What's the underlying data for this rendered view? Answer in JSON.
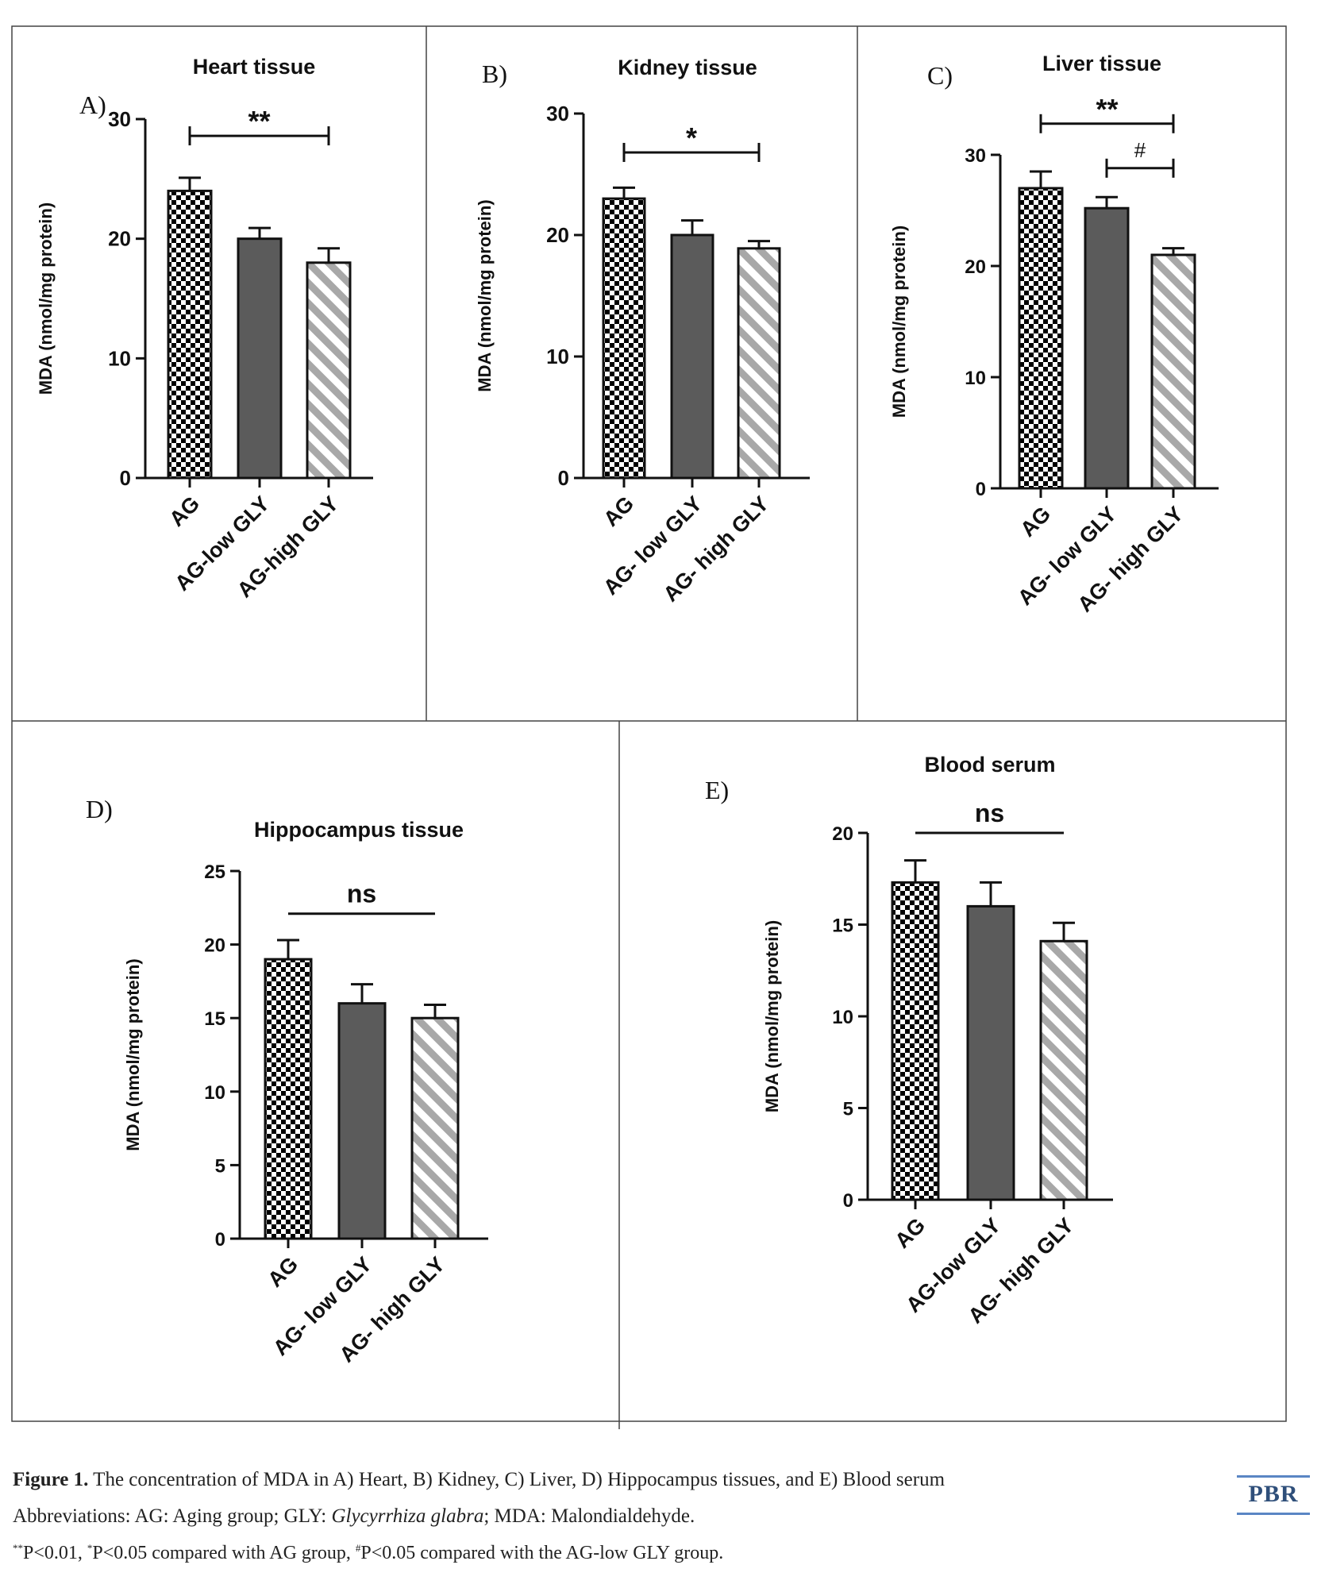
{
  "chart_data": [
    {
      "type": "bar",
      "panel_label": "A)",
      "title": "Heart tissue",
      "ylabel": "MDA (nmol/mg protein)",
      "categories": [
        "AG",
        "AG-low GLY",
        "AG-high GLY"
      ],
      "values": [
        24,
        20,
        18
      ],
      "errors": [
        1.1,
        0.9,
        1.2
      ],
      "ylim": [
        0,
        30
      ],
      "yticks": [
        0,
        10,
        20,
        30
      ],
      "significance": [
        {
          "from": 0,
          "to": 2,
          "label": "**",
          "level": 28.6
        }
      ]
    },
    {
      "type": "bar",
      "panel_label": "B)",
      "title": "Kidney tissue",
      "ylabel": "MDA (nmol/mg protein)",
      "categories": [
        "AG",
        "AG- low GLY",
        "AG- high GLY"
      ],
      "values": [
        23,
        20,
        18.9
      ],
      "errors": [
        0.9,
        1.2,
        0.6
      ],
      "ylim": [
        0,
        30
      ],
      "yticks": [
        0,
        10,
        20,
        30
      ],
      "significance": [
        {
          "from": 0,
          "to": 2,
          "label": "*",
          "level": 26.8
        }
      ]
    },
    {
      "type": "bar",
      "panel_label": "C)",
      "title": "Liver tissue",
      "ylabel": "MDA (nmol/mg protein)",
      "categories": [
        "AG",
        "AG- low GLY",
        "AG- high GLY"
      ],
      "values": [
        27,
        25.2,
        21
      ],
      "errors": [
        1.5,
        1.0,
        0.6
      ],
      "ylim": [
        0,
        30
      ],
      "yticks": [
        0,
        10,
        20,
        30
      ],
      "significance": [
        {
          "from": 0,
          "to": 2,
          "label": "**",
          "level": 32.8
        },
        {
          "from": 1,
          "to": 2,
          "label": "#",
          "level": 28.8
        }
      ]
    },
    {
      "type": "bar",
      "panel_label": "D)",
      "title": "Hippocampus  tissue",
      "ylabel": "MDA (nmol/mg protein)",
      "categories": [
        "AG",
        "AG- low GLY",
        "AG- high GLY"
      ],
      "values": [
        19,
        16,
        15
      ],
      "errors": [
        1.3,
        1.3,
        0.9
      ],
      "ylim": [
        0,
        25
      ],
      "yticks": [
        0,
        5,
        10,
        15,
        20,
        25
      ],
      "significance": [
        {
          "from": 0,
          "to": 2,
          "label": "ns",
          "level": 22.1,
          "no_ticks": true
        }
      ]
    },
    {
      "type": "bar",
      "panel_label": "E)",
      "title": "Blood serum",
      "ylabel": "MDA (nmol/mg protein)",
      "categories": [
        "AG",
        "AG-low GLY",
        "AG- high GLY"
      ],
      "values": [
        17.3,
        16,
        14.1
      ],
      "errors": [
        1.2,
        1.3,
        1.0
      ],
      "ylim": [
        0,
        20
      ],
      "yticks": [
        0,
        5,
        10,
        15,
        20
      ],
      "significance": [
        {
          "from": 0,
          "to": 2,
          "label": "ns",
          "level": 20.0,
          "no_ticks": true
        }
      ]
    }
  ],
  "bar_styles": [
    "checkerboard",
    "solid-dark-gray",
    "gray-diagonal-stripes"
  ],
  "colors": {
    "dark_bar": "#5b5b5b",
    "stripe": "#a8a8a8",
    "logo_rule": "#5a86c4"
  },
  "caption": {
    "figure_label": "Figure 1.",
    "line1": " The concentration of MDA in A) Heart, B) Kidney, C) Liver, D) Hippocampus tissues, and E) Blood serum",
    "line2_prefix": "Abbreviations: AG: Aging group; GLY: ",
    "line2_italic": "Glycyrrhiza glabra",
    "line2_suffix": "; MDA: Malondialdehyde.",
    "line3_sup1": "**",
    "line3_a": "P<0.01, ",
    "line3_sup2": "*",
    "line3_b": "P<0.05 compared with AG group, ",
    "line3_sup3": "#",
    "line3_c": "P<0.05 compared with the AG-low GLY group."
  },
  "logo": "PBR"
}
